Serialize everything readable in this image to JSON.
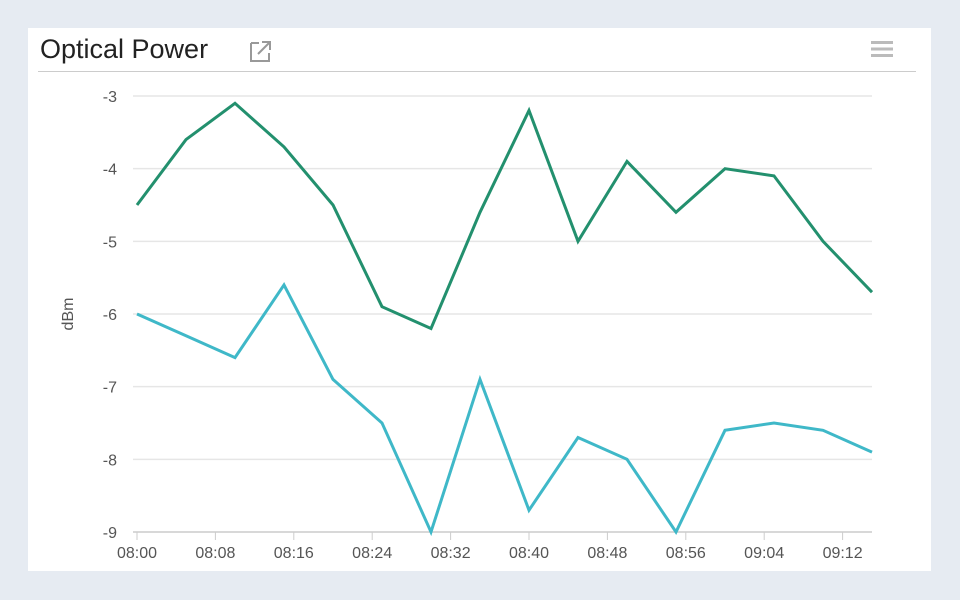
{
  "panel": {
    "title": "Optical Power",
    "external_link_icon": "external-link-icon",
    "menu_icon": "hamburger-menu-icon"
  },
  "chart_data": {
    "type": "line",
    "title": "Optical Power",
    "xlabel": "",
    "ylabel": "dBm",
    "ylim": [
      -9,
      -3
    ],
    "yticks": [
      "-3",
      "-4",
      "-5",
      "-6",
      "-7",
      "-8",
      "-9"
    ],
    "xticks": [
      "08:00",
      "08:08",
      "08:16",
      "08:24",
      "08:32",
      "08:40",
      "08:48",
      "08:56",
      "09:04",
      "09:12"
    ],
    "x": [
      "08:00",
      "08:05",
      "08:10",
      "08:15",
      "08:20",
      "08:25",
      "08:30",
      "08:35",
      "08:40",
      "08:45",
      "08:50",
      "08:55",
      "09:00",
      "09:05",
      "09:10",
      "09:15"
    ],
    "grid": true,
    "series": [
      {
        "color": "#23906e",
        "values": [
          -4.5,
          -3.6,
          -3.1,
          -3.7,
          -4.5,
          -5.9,
          -6.2,
          -4.6,
          -3.2,
          -5.0,
          -3.9,
          -4.6,
          -4.0,
          -4.1,
          -5.0,
          -5.7
        ]
      },
      {
        "color": "#3fb8c8",
        "values": [
          -6.0,
          -6.3,
          -6.6,
          -5.6,
          -6.9,
          -7.5,
          -9.0,
          -6.9,
          -8.7,
          -7.7,
          -8.0,
          -9.0,
          -7.6,
          -7.5,
          -7.6,
          -7.9
        ]
      }
    ]
  }
}
